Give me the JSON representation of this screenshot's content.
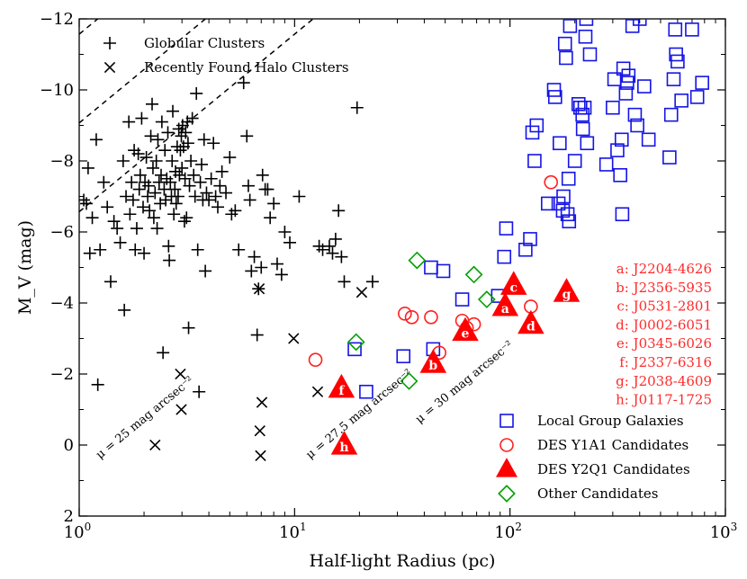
{
  "chart_data": {
    "type": "scatter",
    "xlabel": "Half-light Radius (pc)",
    "ylabel": "M_V (mag)",
    "xscale": "log",
    "xlim": [
      1,
      1000
    ],
    "ylim": [
      2,
      -12
    ],
    "x_ticks": [
      {
        "value": 1,
        "base": "10",
        "exp": "0"
      },
      {
        "value": 10,
        "base": "10",
        "exp": "1"
      },
      {
        "value": 100,
        "base": "10",
        "exp": "2"
      },
      {
        "value": 1000,
        "base": "10",
        "exp": "3"
      }
    ],
    "y_ticks": [
      {
        "value": -12,
        "label": "−12"
      },
      {
        "value": -10,
        "label": "−10"
      },
      {
        "value": -8,
        "label": "−8"
      },
      {
        "value": -6,
        "label": "−6"
      },
      {
        "value": -4,
        "label": "−4"
      },
      {
        "value": -2,
        "label": "−2"
      },
      {
        "value": 0,
        "label": "0"
      },
      {
        "value": 2,
        "label": "2"
      }
    ],
    "guide_lines": [
      {
        "mu": 25,
        "label": "μ = 25 mag arcsec⁻²",
        "label_at": [
          1.25,
          0.4
        ]
      },
      {
        "mu": 27.5,
        "label": "μ = 27.5 mag arcsec⁻²",
        "label_at": [
          11.8,
          0.4
        ]
      },
      {
        "mu": 30,
        "label": "μ = 30 mag arcsec⁻²",
        "label_at": [
          38,
          -0.6
        ]
      }
    ],
    "series": [
      {
        "name": "Globular Clusters",
        "marker": "plus",
        "color": "#000000",
        "points": [
          [
            1.05,
            -6.9
          ],
          [
            1.08,
            -6.8
          ],
          [
            1.1,
            -7.8
          ],
          [
            1.12,
            -5.4
          ],
          [
            1.15,
            -6.4
          ],
          [
            1.2,
            -8.6
          ],
          [
            1.22,
            -1.7
          ],
          [
            1.25,
            -5.5
          ],
          [
            1.3,
            -7.4
          ],
          [
            1.35,
            -6.7
          ],
          [
            1.4,
            -4.6
          ],
          [
            1.45,
            -6.3
          ],
          [
            1.5,
            -6.1
          ],
          [
            1.55,
            -5.7
          ],
          [
            1.6,
            -8.0
          ],
          [
            1.62,
            -3.8
          ],
          [
            1.65,
            -7.0
          ],
          [
            1.7,
            -9.1
          ],
          [
            1.72,
            -6.5
          ],
          [
            1.75,
            -7.4
          ],
          [
            1.78,
            -6.9
          ],
          [
            1.8,
            -8.3
          ],
          [
            1.82,
            -5.5
          ],
          [
            1.85,
            -6.1
          ],
          [
            1.88,
            -8.2
          ],
          [
            1.9,
            -7.2
          ],
          [
            1.92,
            -7.6
          ],
          [
            1.95,
            -9.2
          ],
          [
            1.98,
            -6.7
          ],
          [
            2.0,
            -5.4
          ],
          [
            2.02,
            -7.4
          ],
          [
            2.05,
            -8.1
          ],
          [
            2.08,
            -7.0
          ],
          [
            2.1,
            -7.3
          ],
          [
            2.12,
            -6.6
          ],
          [
            2.15,
            -8.7
          ],
          [
            2.18,
            -9.6
          ],
          [
            2.2,
            -7.8
          ],
          [
            2.22,
            -6.4
          ],
          [
            2.25,
            -7.1
          ],
          [
            2.28,
            -8.0
          ],
          [
            2.3,
            -6.1
          ],
          [
            2.32,
            -8.6
          ],
          [
            2.35,
            -7.4
          ],
          [
            2.38,
            -6.8
          ],
          [
            2.4,
            -7.6
          ],
          [
            2.42,
            -9.1
          ],
          [
            2.45,
            -2.6
          ],
          [
            2.48,
            -7.2
          ],
          [
            2.5,
            -8.3
          ],
          [
            2.52,
            -6.9
          ],
          [
            2.55,
            -7.5
          ],
          [
            2.58,
            -8.8
          ],
          [
            2.6,
            -5.6
          ],
          [
            2.62,
            -5.2
          ],
          [
            2.65,
            -7.4
          ],
          [
            2.68,
            -7.0
          ],
          [
            2.7,
            -8.0
          ],
          [
            2.72,
            -9.4
          ],
          [
            2.75,
            -6.5
          ],
          [
            2.78,
            -7.2
          ],
          [
            2.8,
            -7.7
          ],
          [
            2.82,
            -6.8
          ],
          [
            2.85,
            -8.4
          ],
          [
            2.88,
            -7.0
          ],
          [
            2.9,
            -8.9
          ],
          [
            2.92,
            -7.6
          ],
          [
            2.95,
            -8.3
          ],
          [
            2.98,
            -8.7
          ],
          [
            3.0,
            -7.8
          ],
          [
            3.02,
            -9.0
          ],
          [
            3.05,
            -8.4
          ],
          [
            3.08,
            -6.3
          ],
          [
            3.1,
            -7.5
          ],
          [
            3.12,
            -8.8
          ],
          [
            3.15,
            -6.4
          ],
          [
            3.18,
            -9.1
          ],
          [
            3.2,
            -8.5
          ],
          [
            3.22,
            -3.3
          ],
          [
            3.25,
            -7.3
          ],
          [
            3.3,
            -8.0
          ],
          [
            3.35,
            -9.2
          ],
          [
            3.4,
            -7.6
          ],
          [
            3.45,
            -7.0
          ],
          [
            3.5,
            -9.9
          ],
          [
            3.55,
            -5.5
          ],
          [
            3.6,
            -1.5
          ],
          [
            3.65,
            -7.4
          ],
          [
            3.7,
            -7.9
          ],
          [
            3.75,
            -6.9
          ],
          [
            3.8,
            -8.6
          ],
          [
            3.85,
            -4.9
          ],
          [
            3.9,
            -7.1
          ],
          [
            4.0,
            -6.9
          ],
          [
            4.1,
            -7.5
          ],
          [
            4.2,
            -8.5
          ],
          [
            4.3,
            -7.0
          ],
          [
            4.4,
            -6.7
          ],
          [
            4.5,
            -7.3
          ],
          [
            4.6,
            -7.7
          ],
          [
            4.8,
            -7.1
          ],
          [
            5.0,
            -8.1
          ],
          [
            5.1,
            -6.5
          ],
          [
            5.3,
            -6.6
          ],
          [
            5.5,
            -5.5
          ],
          [
            5.8,
            -10.2
          ],
          [
            6.0,
            -8.7
          ],
          [
            6.1,
            -7.3
          ],
          [
            6.2,
            -6.9
          ],
          [
            6.3,
            -4.9
          ],
          [
            6.5,
            -5.3
          ],
          [
            6.7,
            -3.1
          ],
          [
            6.8,
            -4.4
          ],
          [
            7.0,
            -5.0
          ],
          [
            7.1,
            -7.6
          ],
          [
            7.3,
            -7.2
          ],
          [
            7.5,
            -7.2
          ],
          [
            7.7,
            -6.4
          ],
          [
            8.0,
            -6.8
          ],
          [
            8.3,
            -5.1
          ],
          [
            8.7,
            -4.8
          ],
          [
            9.0,
            -6.0
          ],
          [
            9.5,
            -5.7
          ],
          [
            10.5,
            -7.0
          ],
          [
            13.0,
            -5.6
          ],
          [
            13.5,
            -5.5
          ],
          [
            14.5,
            -5.6
          ],
          [
            15.0,
            -5.4
          ],
          [
            15.5,
            -5.8
          ],
          [
            16.0,
            -6.6
          ],
          [
            16.5,
            -5.3
          ],
          [
            17.0,
            -4.6
          ],
          [
            19.5,
            -9.5
          ],
          [
            23.0,
            -4.6
          ]
        ]
      },
      {
        "name": "Recently Found Halo Clusters",
        "marker": "cross",
        "color": "#000000",
        "points": [
          [
            2.25,
            0.0
          ],
          [
            2.95,
            -2.0
          ],
          [
            2.98,
            -1.0
          ],
          [
            6.85,
            -4.4
          ],
          [
            6.9,
            -0.4
          ],
          [
            6.95,
            0.3
          ],
          [
            7.05,
            -1.2
          ],
          [
            9.9,
            -3.0
          ],
          [
            12.8,
            -1.5
          ],
          [
            20.5,
            -4.3
          ]
        ]
      },
      {
        "name": "Local Group Galaxies",
        "marker": "square",
        "color": "#1414e6",
        "points": [
          [
            19.0,
            -2.7
          ],
          [
            21.5,
            -1.5
          ],
          [
            32.0,
            -2.5
          ],
          [
            43.0,
            -5.0
          ],
          [
            44.0,
            -2.7
          ],
          [
            49.0,
            -4.9
          ],
          [
            60.0,
            -4.1
          ],
          [
            88.0,
            -4.2
          ],
          [
            94.0,
            -5.3
          ],
          [
            96.0,
            -6.1
          ],
          [
            118.0,
            -5.5
          ],
          [
            124.0,
            -5.8
          ],
          [
            127.0,
            -8.8
          ],
          [
            130.0,
            -8.0
          ],
          [
            133.0,
            -9.0
          ],
          [
            150.0,
            -6.8
          ],
          [
            160.0,
            -10.0
          ],
          [
            162.0,
            -9.8
          ],
          [
            168.0,
            -6.8
          ],
          [
            170.0,
            -8.5
          ],
          [
            176.0,
            -6.6
          ],
          [
            177.0,
            -7.0
          ],
          [
            180.0,
            -11.3
          ],
          [
            182.0,
            -10.9
          ],
          [
            185.0,
            -6.5
          ],
          [
            187.0,
            -7.5
          ],
          [
            188.0,
            -6.3
          ],
          [
            190.0,
            -11.8
          ],
          [
            200.0,
            -8.0
          ],
          [
            208.0,
            -9.6
          ],
          [
            212.0,
            -9.5
          ],
          [
            217.0,
            -9.3
          ],
          [
            218.0,
            -8.9
          ],
          [
            222.0,
            -9.5
          ],
          [
            224.0,
            -11.5
          ],
          [
            226.0,
            -12.0
          ],
          [
            228.0,
            -8.5
          ],
          [
            235.0,
            -11.0
          ],
          [
            280.0,
            -7.9
          ],
          [
            300.0,
            -9.5
          ],
          [
            305.0,
            -10.3
          ],
          [
            315.0,
            -8.3
          ],
          [
            325.0,
            -7.6
          ],
          [
            330.0,
            -8.6
          ],
          [
            332.0,
            -6.5
          ],
          [
            336.0,
            -10.6
          ],
          [
            345.0,
            -9.9
          ],
          [
            350.0,
            -10.2
          ],
          [
            355.0,
            -10.4
          ],
          [
            370.0,
            -11.8
          ],
          [
            380.0,
            -9.3
          ],
          [
            390.0,
            -9.0
          ],
          [
            400.0,
            -12.0
          ],
          [
            420.0,
            -10.1
          ],
          [
            440.0,
            -8.6
          ],
          [
            550.0,
            -8.1
          ],
          [
            560.0,
            -9.3
          ],
          [
            575.0,
            -10.3
          ],
          [
            585.0,
            -11.7
          ],
          [
            590.0,
            -11.0
          ],
          [
            600.0,
            -10.8
          ],
          [
            625.0,
            -9.7
          ],
          [
            700.0,
            -11.7
          ],
          [
            740.0,
            -9.8
          ],
          [
            780.0,
            -10.2
          ]
        ]
      },
      {
        "name": "DES Y1A1 Candidates",
        "marker": "circle",
        "color": "#ff2020",
        "points": [
          [
            12.5,
            -2.4
          ],
          [
            32.5,
            -3.7
          ],
          [
            35.0,
            -3.6
          ],
          [
            43.0,
            -3.6
          ],
          [
            47.0,
            -2.6
          ],
          [
            60.0,
            -3.5
          ],
          [
            63.0,
            -3.3
          ],
          [
            68.0,
            -3.4
          ],
          [
            125.0,
            -3.9
          ],
          [
            155.0,
            -7.4
          ]
        ]
      },
      {
        "name": "DES Y2Q1 Candidates",
        "marker": "triangle",
        "color": "#ff0000",
        "points": [
          {
            "x": 95,
            "y": -3.9,
            "label": "a"
          },
          {
            "x": 44,
            "y": -2.3,
            "label": "b"
          },
          {
            "x": 104,
            "y": -4.5,
            "label": "c"
          },
          {
            "x": 125,
            "y": -3.4,
            "label": "d"
          },
          {
            "x": 62,
            "y": -3.2,
            "label": "e"
          },
          {
            "x": 16.5,
            "y": -1.6,
            "label": "f"
          },
          {
            "x": 183,
            "y": -4.3,
            "label": "g"
          },
          {
            "x": 17.0,
            "y": 0.0,
            "label": "h"
          }
        ]
      },
      {
        "name": "Other Candidates",
        "marker": "diamond",
        "color": "#00a000",
        "points": [
          [
            19.3,
            -2.9
          ],
          [
            34.0,
            -1.8
          ],
          [
            37.0,
            -5.2
          ],
          [
            68.0,
            -4.8
          ],
          [
            78.0,
            -4.1
          ]
        ]
      }
    ],
    "legend_top_left": [
      {
        "label": "Globular Clusters",
        "marker": "plus"
      },
      {
        "label": "Recently Found Halo Clusters",
        "marker": "cross"
      }
    ],
    "legend_bottom_right": [
      {
        "label": "Local Group Galaxies",
        "marker": "square"
      },
      {
        "label": "DES Y1A1 Candidates",
        "marker": "circle"
      },
      {
        "label": "DES Y2Q1 Candidates",
        "marker": "triangle"
      },
      {
        "label": "Other Candidates",
        "marker": "diamond"
      }
    ],
    "candidate_names": [
      "a: J2204-4626",
      "b: J2356-5935",
      "c: J0531-2801",
      "d: J0002-6051",
      "e: J0345-6026",
      "f: J2337-6316",
      "g: J2038-4609",
      "h: J0117-1725"
    ],
    "colors": {
      "candidate_text": "#ff2a2a",
      "axes": "#000000"
    }
  }
}
